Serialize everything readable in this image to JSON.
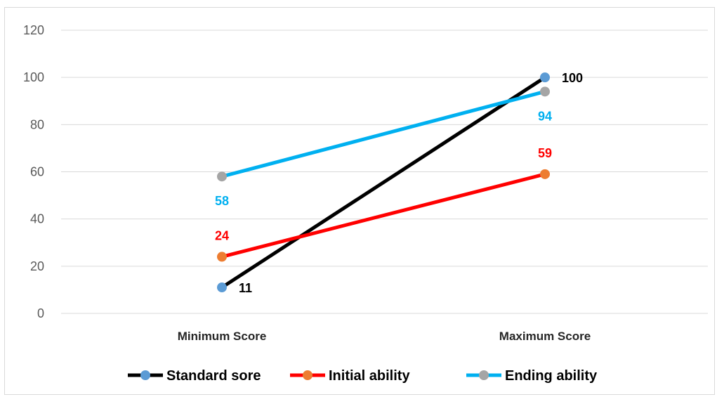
{
  "chart_data": {
    "type": "line",
    "title": "",
    "xlabel": "",
    "ylabel": "",
    "categories": [
      "Minimum Score",
      "Maximum Score"
    ],
    "ylim": [
      0,
      120
    ],
    "yticks": [
      0,
      20,
      40,
      60,
      80,
      100,
      120
    ],
    "grid": true,
    "legend_position": "bottom",
    "series": [
      {
        "name": "Standard sore",
        "values": [
          11,
          100
        ],
        "line_color": "#000000",
        "marker_color": "#5b9bd5",
        "label_color": "#000000"
      },
      {
        "name": "Initial ability",
        "values": [
          24,
          59
        ],
        "line_color": "#ff0000",
        "marker_color": "#ed7d31",
        "label_color": "#ff0000"
      },
      {
        "name": "Ending ability",
        "values": [
          58,
          94
        ],
        "line_color": "#00b0f0",
        "marker_color": "#a5a5a5",
        "label_color": "#00b0f0"
      }
    ]
  }
}
